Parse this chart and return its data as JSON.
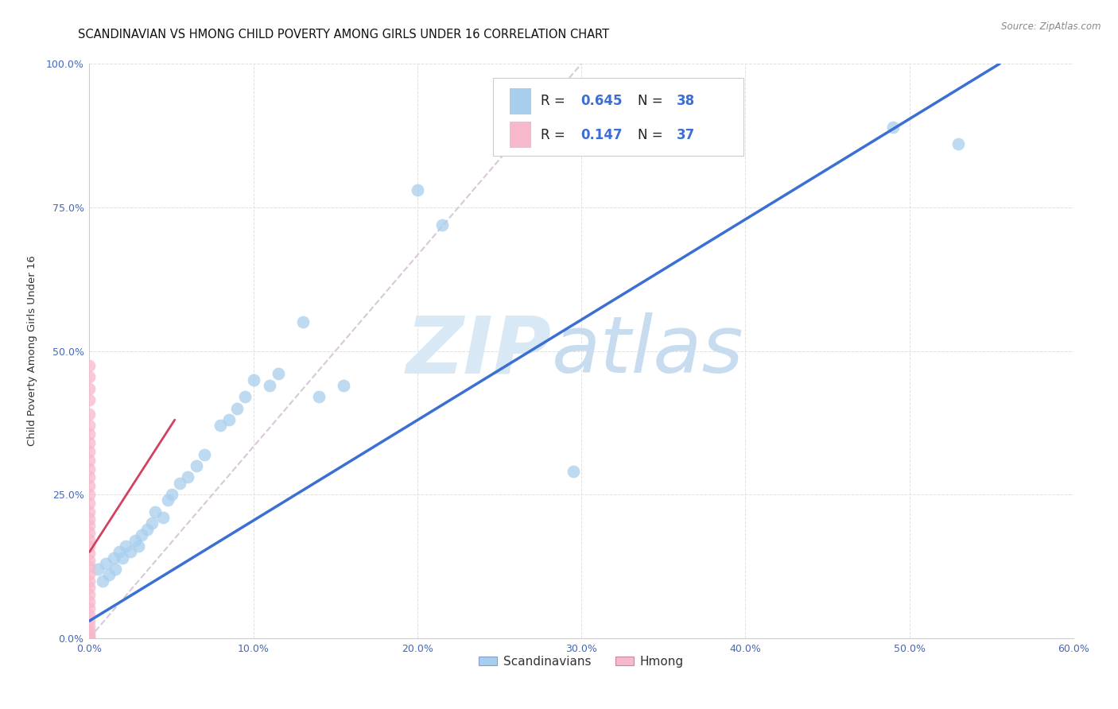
{
  "title": "SCANDINAVIAN VS HMONG CHILD POVERTY AMONG GIRLS UNDER 16 CORRELATION CHART",
  "source": "Source: ZipAtlas.com",
  "ylabel": "Child Poverty Among Girls Under 16",
  "xlabel": "",
  "xlim": [
    0.0,
    0.6
  ],
  "ylim": [
    0.0,
    1.0
  ],
  "xticks": [
    0.0,
    0.1,
    0.2,
    0.3,
    0.4,
    0.5,
    0.6
  ],
  "yticks": [
    0.0,
    0.25,
    0.5,
    0.75,
    1.0
  ],
  "xticklabels": [
    "0.0%",
    "10.0%",
    "20.0%",
    "30.0%",
    "40.0%",
    "50.0%",
    "60.0%"
  ],
  "yticklabels": [
    "0.0%",
    "25.0%",
    "50.0%",
    "75.0%",
    "100.0%"
  ],
  "scandinavian_R": 0.645,
  "scandinavian_N": 38,
  "hmong_R": 0.147,
  "hmong_N": 37,
  "scand_color": "#A8CEED",
  "hmong_color": "#F7B8CB",
  "scand_line_color": "#3B6FD4",
  "hmong_line_color": "#D44060",
  "ref_line_color": "#D8C8D8",
  "watermark_color": "#D8E8F4",
  "title_fontsize": 10.5,
  "axis_label_fontsize": 9.5,
  "tick_fontsize": 9,
  "legend_fontsize": 11,
  "scand_x": [
    0.005,
    0.008,
    0.01,
    0.012,
    0.015,
    0.016,
    0.018,
    0.02,
    0.022,
    0.025,
    0.028,
    0.03,
    0.032,
    0.035,
    0.038,
    0.04,
    0.045,
    0.048,
    0.05,
    0.055,
    0.06,
    0.065,
    0.07,
    0.08,
    0.085,
    0.09,
    0.095,
    0.1,
    0.11,
    0.115,
    0.13,
    0.14,
    0.155,
    0.2,
    0.215,
    0.295,
    0.49,
    0.53
  ],
  "scand_y": [
    0.12,
    0.1,
    0.13,
    0.11,
    0.14,
    0.12,
    0.15,
    0.14,
    0.16,
    0.15,
    0.17,
    0.16,
    0.18,
    0.19,
    0.2,
    0.22,
    0.21,
    0.24,
    0.25,
    0.27,
    0.28,
    0.3,
    0.32,
    0.37,
    0.38,
    0.4,
    0.42,
    0.45,
    0.44,
    0.46,
    0.55,
    0.42,
    0.44,
    0.78,
    0.72,
    0.29,
    0.89,
    0.86
  ],
  "hmong_x": [
    0.0,
    0.0,
    0.0,
    0.0,
    0.0,
    0.0,
    0.0,
    0.0,
    0.0,
    0.0,
    0.0,
    0.0,
    0.0,
    0.0,
    0.0,
    0.0,
    0.0,
    0.0,
    0.0,
    0.0,
    0.0,
    0.0,
    0.0,
    0.0,
    0.0,
    0.0,
    0.0,
    0.0,
    0.0,
    0.0,
    0.0,
    0.0,
    0.0,
    0.0,
    0.0,
    0.0,
    0.0
  ],
  "hmong_y": [
    0.475,
    0.455,
    0.435,
    0.415,
    0.39,
    0.37,
    0.355,
    0.34,
    0.325,
    0.31,
    0.295,
    0.28,
    0.265,
    0.25,
    0.235,
    0.22,
    0.208,
    0.196,
    0.184,
    0.172,
    0.16,
    0.148,
    0.136,
    0.124,
    0.112,
    0.1,
    0.088,
    0.076,
    0.064,
    0.052,
    0.04,
    0.03,
    0.02,
    0.012,
    0.006,
    0.002,
    0.0
  ],
  "scand_line_x": [
    0.0,
    0.555
  ],
  "scand_line_y": [
    0.03,
    1.0
  ],
  "hmong_line_x": [
    0.0,
    0.052
  ],
  "hmong_line_y": [
    0.15,
    0.38
  ],
  "ref_line_x": [
    0.0,
    0.3
  ],
  "ref_line_y": [
    0.0,
    1.0
  ]
}
